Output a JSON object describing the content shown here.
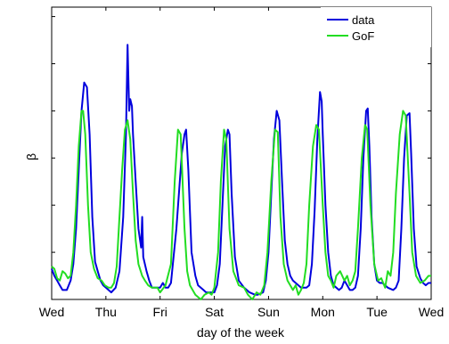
{
  "chart_data": {
    "type": "line",
    "xlabel": "day of the week",
    "ylabel": "β",
    "x_tick_labels": [
      "Wed",
      "Thu",
      "Fri",
      "Sat",
      "Sun",
      "Mon",
      "Tue",
      "Wed"
    ],
    "y_tick_labels": [
      "",
      "",
      "",
      "",
      "",
      ""
    ],
    "y_ticks": [
      0.2,
      0.4,
      0.6,
      0.8,
      1.0,
      1.2
    ],
    "xlim": [
      0,
      7
    ],
    "ylim": [
      0,
      1.24
    ],
    "grid": false,
    "legend_position": "top-right",
    "series": [
      {
        "name": "data",
        "color": "#0000dd",
        "points": [
          [
            0.0,
            0.13
          ],
          [
            0.05,
            0.1
          ],
          [
            0.1,
            0.08
          ],
          [
            0.15,
            0.06
          ],
          [
            0.2,
            0.04
          ],
          [
            0.28,
            0.04
          ],
          [
            0.35,
            0.08
          ],
          [
            0.4,
            0.15
          ],
          [
            0.45,
            0.3
          ],
          [
            0.5,
            0.55
          ],
          [
            0.55,
            0.8
          ],
          [
            0.6,
            0.92
          ],
          [
            0.65,
            0.9
          ],
          [
            0.7,
            0.7
          ],
          [
            0.75,
            0.35
          ],
          [
            0.8,
            0.16
          ],
          [
            0.85,
            0.12
          ],
          [
            0.9,
            0.08
          ],
          [
            0.95,
            0.06
          ],
          [
            1.0,
            0.05
          ],
          [
            1.1,
            0.03
          ],
          [
            1.18,
            0.05
          ],
          [
            1.25,
            0.12
          ],
          [
            1.32,
            0.35
          ],
          [
            1.37,
            0.7
          ],
          [
            1.4,
            1.08
          ],
          [
            1.43,
            0.8
          ],
          [
            1.45,
            0.85
          ],
          [
            1.48,
            0.82
          ],
          [
            1.5,
            0.7
          ],
          [
            1.55,
            0.5
          ],
          [
            1.6,
            0.3
          ],
          [
            1.65,
            0.22
          ],
          [
            1.67,
            0.35
          ],
          [
            1.69,
            0.18
          ],
          [
            1.75,
            0.12
          ],
          [
            1.8,
            0.08
          ],
          [
            1.85,
            0.05
          ],
          [
            1.95,
            0.05
          ],
          [
            2.0,
            0.05
          ],
          [
            2.05,
            0.07
          ],
          [
            2.1,
            0.05
          ],
          [
            2.15,
            0.05
          ],
          [
            2.2,
            0.07
          ],
          [
            2.3,
            0.3
          ],
          [
            2.4,
            0.62
          ],
          [
            2.45,
            0.7
          ],
          [
            2.48,
            0.72
          ],
          [
            2.52,
            0.55
          ],
          [
            2.58,
            0.2
          ],
          [
            2.65,
            0.1
          ],
          [
            2.7,
            0.06
          ],
          [
            2.8,
            0.04
          ],
          [
            2.85,
            0.03
          ],
          [
            2.9,
            0.03
          ],
          [
            3.0,
            0.03
          ],
          [
            3.05,
            0.06
          ],
          [
            3.1,
            0.15
          ],
          [
            3.15,
            0.4
          ],
          [
            3.2,
            0.65
          ],
          [
            3.25,
            0.72
          ],
          [
            3.28,
            0.7
          ],
          [
            3.32,
            0.45
          ],
          [
            3.38,
            0.18
          ],
          [
            3.45,
            0.08
          ],
          [
            3.55,
            0.05
          ],
          [
            3.65,
            0.03
          ],
          [
            3.75,
            0.02
          ],
          [
            3.8,
            0.02
          ],
          [
            3.9,
            0.03
          ],
          [
            3.95,
            0.08
          ],
          [
            4.0,
            0.2
          ],
          [
            4.05,
            0.45
          ],
          [
            4.1,
            0.68
          ],
          [
            4.15,
            0.8
          ],
          [
            4.2,
            0.76
          ],
          [
            4.25,
            0.5
          ],
          [
            4.3,
            0.25
          ],
          [
            4.35,
            0.15
          ],
          [
            4.4,
            0.1
          ],
          [
            4.45,
            0.08
          ],
          [
            4.5,
            0.07
          ],
          [
            4.55,
            0.06
          ],
          [
            4.6,
            0.05
          ],
          [
            4.7,
            0.05
          ],
          [
            4.75,
            0.06
          ],
          [
            4.8,
            0.15
          ],
          [
            4.85,
            0.38
          ],
          [
            4.9,
            0.68
          ],
          [
            4.95,
            0.88
          ],
          [
            4.98,
            0.84
          ],
          [
            5.0,
            0.7
          ],
          [
            5.05,
            0.4
          ],
          [
            5.1,
            0.2
          ],
          [
            5.15,
            0.1
          ],
          [
            5.2,
            0.06
          ],
          [
            5.25,
            0.05
          ],
          [
            5.3,
            0.04
          ],
          [
            5.35,
            0.05
          ],
          [
            5.4,
            0.08
          ],
          [
            5.45,
            0.06
          ],
          [
            5.5,
            0.04
          ],
          [
            5.55,
            0.04
          ],
          [
            5.6,
            0.05
          ],
          [
            5.65,
            0.1
          ],
          [
            5.7,
            0.3
          ],
          [
            5.75,
            0.6
          ],
          [
            5.8,
            0.8
          ],
          [
            5.83,
            0.81
          ],
          [
            5.86,
            0.65
          ],
          [
            5.9,
            0.35
          ],
          [
            5.95,
            0.15
          ],
          [
            6.0,
            0.08
          ],
          [
            6.05,
            0.07
          ],
          [
            6.1,
            0.07
          ],
          [
            6.15,
            0.06
          ],
          [
            6.2,
            0.05
          ],
          [
            6.3,
            0.04
          ],
          [
            6.35,
            0.05
          ],
          [
            6.4,
            0.08
          ],
          [
            6.45,
            0.3
          ],
          [
            6.5,
            0.6
          ],
          [
            6.55,
            0.78
          ],
          [
            6.6,
            0.79
          ],
          [
            6.63,
            0.62
          ],
          [
            6.68,
            0.3
          ],
          [
            6.73,
            0.14
          ],
          [
            6.8,
            0.09
          ],
          [
            6.85,
            0.07
          ],
          [
            6.9,
            0.06
          ],
          [
            6.95,
            0.07
          ],
          [
            7.0,
            0.07
          ]
        ]
      },
      {
        "name": "GoF",
        "color": "#22dd22",
        "points": [
          [
            0.0,
            0.14
          ],
          [
            0.05,
            0.13
          ],
          [
            0.1,
            0.09
          ],
          [
            0.15,
            0.08
          ],
          [
            0.2,
            0.12
          ],
          [
            0.25,
            0.11
          ],
          [
            0.3,
            0.09
          ],
          [
            0.35,
            0.1
          ],
          [
            0.4,
            0.2
          ],
          [
            0.45,
            0.4
          ],
          [
            0.5,
            0.65
          ],
          [
            0.55,
            0.8
          ],
          [
            0.58,
            0.8
          ],
          [
            0.62,
            0.7
          ],
          [
            0.67,
            0.4
          ],
          [
            0.72,
            0.2
          ],
          [
            0.78,
            0.13
          ],
          [
            0.85,
            0.09
          ],
          [
            0.92,
            0.08
          ],
          [
            0.98,
            0.06
          ],
          [
            1.05,
            0.05
          ],
          [
            1.1,
            0.05
          ],
          [
            1.15,
            0.07
          ],
          [
            1.2,
            0.14
          ],
          [
            1.25,
            0.35
          ],
          [
            1.3,
            0.55
          ],
          [
            1.35,
            0.72
          ],
          [
            1.4,
            0.76
          ],
          [
            1.45,
            0.68
          ],
          [
            1.5,
            0.45
          ],
          [
            1.55,
            0.25
          ],
          [
            1.6,
            0.15
          ],
          [
            1.67,
            0.1
          ],
          [
            1.72,
            0.08
          ],
          [
            1.78,
            0.06
          ],
          [
            1.85,
            0.05
          ],
          [
            1.95,
            0.05
          ],
          [
            2.0,
            0.03
          ],
          [
            2.1,
            0.06
          ],
          [
            2.2,
            0.15
          ],
          [
            2.27,
            0.5
          ],
          [
            2.33,
            0.72
          ],
          [
            2.38,
            0.7
          ],
          [
            2.45,
            0.3
          ],
          [
            2.5,
            0.12
          ],
          [
            2.55,
            0.06
          ],
          [
            2.65,
            0.02
          ],
          [
            2.75,
            0.0
          ],
          [
            2.82,
            0.02
          ],
          [
            2.9,
            0.03
          ],
          [
            2.95,
            0.02
          ],
          [
            3.0,
            0.05
          ],
          [
            3.07,
            0.2
          ],
          [
            3.12,
            0.5
          ],
          [
            3.18,
            0.72
          ],
          [
            3.22,
            0.68
          ],
          [
            3.28,
            0.3
          ],
          [
            3.35,
            0.12
          ],
          [
            3.45,
            0.06
          ],
          [
            3.55,
            0.05
          ],
          [
            3.62,
            0.02
          ],
          [
            3.7,
            0.0
          ],
          [
            3.78,
            0.03
          ],
          [
            3.85,
            0.02
          ],
          [
            3.92,
            0.06
          ],
          [
            3.98,
            0.2
          ],
          [
            4.05,
            0.5
          ],
          [
            4.12,
            0.72
          ],
          [
            4.17,
            0.71
          ],
          [
            4.22,
            0.35
          ],
          [
            4.28,
            0.15
          ],
          [
            4.35,
            0.08
          ],
          [
            4.45,
            0.04
          ],
          [
            4.5,
            0.06
          ],
          [
            4.55,
            0.02
          ],
          [
            4.6,
            0.04
          ],
          [
            4.65,
            0.07
          ],
          [
            4.7,
            0.15
          ],
          [
            4.75,
            0.4
          ],
          [
            4.82,
            0.65
          ],
          [
            4.88,
            0.74
          ],
          [
            4.93,
            0.72
          ],
          [
            5.0,
            0.4
          ],
          [
            5.05,
            0.2
          ],
          [
            5.1,
            0.1
          ],
          [
            5.15,
            0.08
          ],
          [
            5.2,
            0.05
          ],
          [
            5.25,
            0.1
          ],
          [
            5.32,
            0.12
          ],
          [
            5.4,
            0.08
          ],
          [
            5.45,
            0.1
          ],
          [
            5.5,
            0.06
          ],
          [
            5.55,
            0.08
          ],
          [
            5.6,
            0.12
          ],
          [
            5.65,
            0.3
          ],
          [
            5.72,
            0.6
          ],
          [
            5.78,
            0.74
          ],
          [
            5.82,
            0.72
          ],
          [
            5.88,
            0.4
          ],
          [
            5.95,
            0.15
          ],
          [
            6.02,
            0.08
          ],
          [
            6.08,
            0.09
          ],
          [
            6.15,
            0.05
          ],
          [
            6.2,
            0.12
          ],
          [
            6.25,
            0.1
          ],
          [
            6.3,
            0.2
          ],
          [
            6.35,
            0.45
          ],
          [
            6.42,
            0.7
          ],
          [
            6.48,
            0.8
          ],
          [
            6.53,
            0.78
          ],
          [
            6.6,
            0.45
          ],
          [
            6.65,
            0.2
          ],
          [
            6.72,
            0.1
          ],
          [
            6.8,
            0.07
          ],
          [
            6.88,
            0.08
          ],
          [
            6.95,
            0.1
          ],
          [
            7.0,
            0.1
          ]
        ]
      }
    ]
  }
}
